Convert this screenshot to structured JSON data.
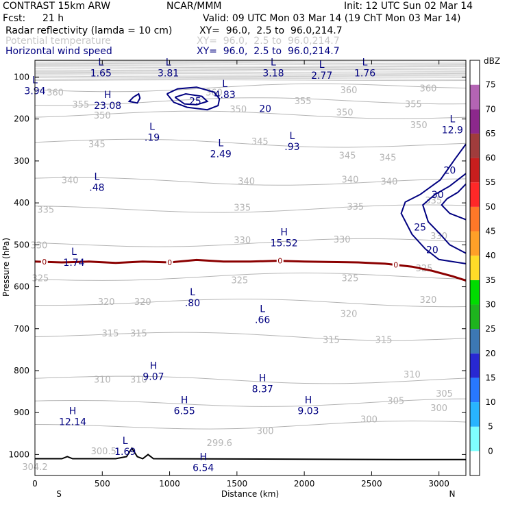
{
  "header": {
    "model": "CONTRAST 15km ARW",
    "org": "NCAR/MMM",
    "init": "Init: 12 UTC Sun 02 Mar 14",
    "fcst_label": "Fcst:",
    "fcst_value": "21 h",
    "valid": "Valid: 09 UTC Mon 03 Mar 14 (19 ChT Mon 03 Mar 14)",
    "fields": [
      {
        "name": "Radar reflectivity (lamda = 10 cm)",
        "xy": "XY=  96.0,  2.5 to  96.0,214.7",
        "color": "#000000"
      },
      {
        "name": "Potential temperature",
        "xy": "XY=  96.0,  2.5 to  96.0,214.7",
        "color": "#c8c8c8"
      },
      {
        "name": "Horizontal wind speed",
        "xy": "XY=  96.0,  2.5 to  96.0,214.7",
        "color": "#000080"
      }
    ]
  },
  "chart_data": {
    "type": "cross-section",
    "xlabel": "Distance (km)",
    "ylabel": "Pressure (hPa)",
    "xlim": [
      0,
      3200
    ],
    "ylim": [
      1050,
      60
    ],
    "x_ticks": [
      0,
      500,
      1000,
      1500,
      2000,
      2500,
      3000
    ],
    "y_ticks": [
      100,
      200,
      300,
      400,
      500,
      600,
      700,
      800,
      900,
      1000
    ],
    "endpoints": {
      "left": "S",
      "right": "N"
    },
    "colorbar": {
      "units": "dBZ",
      "levels": [
        0,
        5,
        10,
        15,
        20,
        25,
        30,
        35,
        40,
        45,
        50,
        55,
        60,
        65,
        70,
        75
      ],
      "colors": [
        "#ffffff",
        "#7fffff",
        "#28b4ff",
        "#2878ff",
        "#2828d2",
        "#3c78b4",
        "#1eb41e",
        "#00dc00",
        "#ffdc28",
        "#ffa028",
        "#ff7828",
        "#ff2828",
        "#c81e1e",
        "#a03c3c",
        "#8c288c",
        "#b464b4",
        "#ffffff"
      ]
    },
    "theta_labels": [
      {
        "v": "360",
        "x": 150,
        "p": 138
      },
      {
        "v": "360",
        "x": 1330,
        "p": 138
      },
      {
        "v": "360",
        "x": 2330,
        "p": 132
      },
      {
        "v": "360",
        "x": 2920,
        "p": 128
      },
      {
        "v": "355",
        "x": 340,
        "p": 166
      },
      {
        "v": "355",
        "x": 1990,
        "p": 158
      },
      {
        "v": "355",
        "x": 2810,
        "p": 165
      },
      {
        "v": "350",
        "x": 500,
        "p": 192
      },
      {
        "v": "350",
        "x": 1510,
        "p": 178
      },
      {
        "v": "350",
        "x": 2300,
        "p": 185
      },
      {
        "v": "350",
        "x": 2850,
        "p": 215
      },
      {
        "v": "345",
        "x": 460,
        "p": 261
      },
      {
        "v": "345",
        "x": 1670,
        "p": 254
      },
      {
        "v": "345",
        "x": 2320,
        "p": 288
      },
      {
        "v": "345",
        "x": 2620,
        "p": 293
      },
      {
        "v": "340",
        "x": 260,
        "p": 347
      },
      {
        "v": "340",
        "x": 1570,
        "p": 349
      },
      {
        "v": "340",
        "x": 2340,
        "p": 345
      },
      {
        "v": "340",
        "x": 2630,
        "p": 350
      },
      {
        "v": "335",
        "x": 80,
        "p": 417
      },
      {
        "v": "335",
        "x": 1540,
        "p": 412
      },
      {
        "v": "335",
        "x": 2380,
        "p": 410
      },
      {
        "v": "335",
        "x": 2960,
        "p": 395
      },
      {
        "v": "330",
        "x": 30,
        "p": 502
      },
      {
        "v": "330",
        "x": 1540,
        "p": 490
      },
      {
        "v": "330",
        "x": 2280,
        "p": 488
      },
      {
        "v": "330",
        "x": 3000,
        "p": 480
      },
      {
        "v": "325",
        "x": 40,
        "p": 580
      },
      {
        "v": "325",
        "x": 1520,
        "p": 585
      },
      {
        "v": "325",
        "x": 2340,
        "p": 580
      },
      {
        "v": "325",
        "x": 2890,
        "p": 557
      },
      {
        "v": "320",
        "x": 530,
        "p": 637
      },
      {
        "v": "320",
        "x": 800,
        "p": 637
      },
      {
        "v": "320",
        "x": 2330,
        "p": 665
      },
      {
        "v": "320",
        "x": 2920,
        "p": 632
      },
      {
        "v": "315",
        "x": 560,
        "p": 712
      },
      {
        "v": "315",
        "x": 770,
        "p": 712
      },
      {
        "v": "315",
        "x": 2200,
        "p": 727
      },
      {
        "v": "315",
        "x": 2590,
        "p": 727
      },
      {
        "v": "310",
        "x": 500,
        "p": 822
      },
      {
        "v": "310",
        "x": 770,
        "p": 822
      },
      {
        "v": "310",
        "x": 2800,
        "p": 810
      },
      {
        "v": "305",
        "x": 2680,
        "p": 873
      },
      {
        "v": "305",
        "x": 3040,
        "p": 856
      },
      {
        "v": "300",
        "x": 2480,
        "p": 917
      },
      {
        "v": "300",
        "x": 1710,
        "p": 945
      },
      {
        "v": "300",
        "x": 3000,
        "p": 890
      },
      {
        "v": "299.6",
        "x": 1370,
        "p": 973
      },
      {
        "v": "300.5",
        "x": 510,
        "p": 993
      },
      {
        "v": "304.2",
        "x": 0,
        "p": 1030
      }
    ],
    "extrema": [
      {
        "t": "L",
        "v": "1.65",
        "x": 490,
        "p": 72
      },
      {
        "t": "L",
        "v": "3.81",
        "x": 990,
        "p": 72
      },
      {
        "t": "L",
        "v": "3.18",
        "x": 1770,
        "p": 72
      },
      {
        "t": "L",
        "v": "2.77",
        "x": 2130,
        "p": 78
      },
      {
        "t": "L",
        "v": "1.76",
        "x": 2450,
        "p": 72
      },
      {
        "t": "L",
        "v": "3.94",
        "x": 0,
        "p": 115
      },
      {
        "t": "L",
        "v": "4.83",
        "x": 1410,
        "p": 124
      },
      {
        "t": "H",
        "v": "23.08",
        "x": 540,
        "p": 150
      },
      {
        "t": "L",
        "v": "12.9",
        "x": 3100,
        "p": 208
      },
      {
        "t": "L",
        "v": ".19",
        "x": 870,
        "p": 226
      },
      {
        "t": "L",
        "v": "2.49",
        "x": 1380,
        "p": 265
      },
      {
        "t": "L",
        "v": ".93",
        "x": 1910,
        "p": 248
      },
      {
        "t": "L",
        "v": ".48",
        "x": 460,
        "p": 345
      },
      {
        "t": "H",
        "v": "15.52",
        "x": 1850,
        "p": 477
      },
      {
        "t": "L",
        "v": "1.74",
        "x": 290,
        "p": 524
      },
      {
        "t": "L",
        "v": ".80",
        "x": 1170,
        "p": 620
      },
      {
        "t": "L",
        "v": ".66",
        "x": 1690,
        "p": 660
      },
      {
        "t": "H",
        "v": "9.07",
        "x": 880,
        "p": 796
      },
      {
        "t": "H",
        "v": "8.37",
        "x": 1690,
        "p": 825
      },
      {
        "t": "H",
        "v": "6.55",
        "x": 1110,
        "p": 878
      },
      {
        "t": "H",
        "v": "9.03",
        "x": 2030,
        "p": 878
      },
      {
        "t": "H",
        "v": "12.14",
        "x": 280,
        "p": 904
      },
      {
        "t": "L",
        "v": "1.69",
        "x": 670,
        "p": 975
      },
      {
        "t": "H",
        "v": "6.54",
        "x": 1250,
        "p": 1013
      }
    ],
    "wind_speed_contours": [
      {
        "level": 20,
        "x": [
          730,
          770,
          780,
          760,
          700,
          730
        ],
        "p": [
          148,
          140,
          150,
          162,
          158,
          148
        ]
      },
      {
        "level": 20,
        "x": [
          980,
          1060,
          1200,
          1330,
          1370,
          1360,
          1280,
          1130,
          1030,
          980
        ],
        "p": [
          140,
          128,
          124,
          136,
          152,
          168,
          178,
          172,
          160,
          140
        ]
      },
      {
        "level": 25,
        "x": [
          1040,
          1120,
          1240,
          1280,
          1200,
          1110,
          1040
        ],
        "p": [
          148,
          140,
          146,
          158,
          166,
          164,
          148
        ]
      },
      {
        "level": 20,
        "x": [
          3200,
          3120,
          3010,
          2860,
          2750,
          2720,
          2800,
          2900,
          3000,
          3200
        ],
        "p": [
          260,
          295,
          345,
          380,
          398,
          425,
          475,
          510,
          535,
          545
        ]
      },
      {
        "level": 25,
        "x": [
          3200,
          3080,
          2970,
          2880,
          2920,
          3010,
          3080,
          3200
        ],
        "p": [
          330,
          360,
          380,
          405,
          445,
          475,
          500,
          520
        ]
      },
      {
        "level": 30,
        "x": [
          3200,
          3140,
          3060,
          3020,
          3080,
          3200
        ],
        "p": [
          355,
          375,
          390,
          405,
          425,
          440
        ]
      }
    ],
    "wind_contour_labels": [
      {
        "v": "25",
        "x": 1190,
        "p": 157
      },
      {
        "v": "20",
        "x": 1710,
        "p": 175
      },
      {
        "v": "20",
        "x": 3080,
        "p": 322
      },
      {
        "v": "30",
        "x": 2990,
        "p": 380
      },
      {
        "v": "25",
        "x": 2860,
        "p": 458
      },
      {
        "v": "20",
        "x": 2950,
        "p": 512
      }
    ],
    "freezing_level": {
      "label": "0",
      "x": [
        0,
        200,
        400,
        600,
        800,
        1000,
        1200,
        1400,
        1600,
        1800,
        2000,
        2200,
        2400,
        2600,
        2800,
        2950,
        3100,
        3200
      ],
      "p": [
        540,
        542,
        540,
        543,
        540,
        542,
        536,
        540,
        540,
        538,
        540,
        541,
        542,
        545,
        552,
        562,
        575,
        585
      ]
    },
    "freezing_labels_x": [
      70,
      1000,
      1820,
      2680
    ],
    "terrain": {
      "x": [
        0,
        200,
        240,
        280,
        600,
        680,
        720,
        760,
        800,
        840,
        880,
        2700,
        3200
      ],
      "p": [
        1010,
        1010,
        1005,
        1010,
        1010,
        1005,
        985,
        1005,
        1010,
        1000,
        1010,
        1012,
        1012
      ]
    }
  }
}
